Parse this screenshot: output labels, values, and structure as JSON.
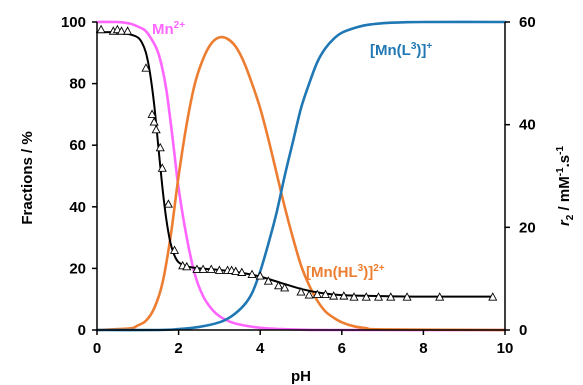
{
  "chart_data": {
    "type": "line",
    "xlabel": "pH",
    "ylabel_left": "Fractions / %",
    "ylabel_right_parts": [
      "r",
      "2",
      " / mM",
      "-1",
      ".s",
      "-1"
    ],
    "xlim": [
      0,
      10
    ],
    "ylim_left": [
      0,
      100
    ],
    "ylim_right": [
      0,
      60
    ],
    "x_ticks": [
      "0",
      "2",
      "4",
      "6",
      "8",
      "10"
    ],
    "y_left_ticks": [
      "0",
      "20",
      "40",
      "60",
      "80",
      "100"
    ],
    "y_right_ticks": [
      "0",
      "20",
      "40",
      "60"
    ],
    "grid": false,
    "series": [
      {
        "name_parts": [
          "Mn",
          "2+"
        ],
        "color": "#ff66ff",
        "axis": "left",
        "x": [
          0,
          0.5,
          0.8,
          1.0,
          1.2,
          1.4,
          1.5,
          1.6,
          1.7,
          1.8,
          1.9,
          2.0,
          2.2,
          2.4,
          2.6,
          2.8,
          3.0,
          3.3,
          3.6,
          4.0,
          4.5,
          5.0,
          6.0,
          10.0
        ],
        "y": [
          100,
          100,
          99.5,
          98.5,
          97,
          93,
          90,
          85,
          78,
          68,
          57,
          46,
          30,
          18,
          11,
          7,
          4.5,
          2.5,
          1.5,
          0.7,
          0.3,
          0.1,
          0,
          0
        ]
      },
      {
        "name_parts": [
          "[Mn(HL",
          "3",
          ")]",
          "2+"
        ],
        "color": "#ed7d31",
        "axis": "left",
        "x": [
          0,
          0.8,
          1.0,
          1.2,
          1.4,
          1.6,
          1.8,
          2.0,
          2.2,
          2.4,
          2.6,
          2.8,
          3.0,
          3.2,
          3.4,
          3.6,
          3.8,
          4.0,
          4.2,
          4.4,
          4.6,
          4.8,
          5.0,
          5.2,
          5.4,
          5.6,
          5.8,
          6.0,
          6.3,
          6.6,
          7.0,
          10.0
        ],
        "y": [
          0,
          0.5,
          1.5,
          3,
          7,
          15,
          30,
          50,
          67,
          80,
          88,
          93,
          95,
          94.5,
          92,
          87,
          80,
          72,
          62,
          51,
          40,
          30,
          21,
          14.5,
          9.5,
          6,
          4,
          2.5,
          1.2,
          0.6,
          0.2,
          0
        ]
      },
      {
        "name_parts": [
          "[Mn(L",
          "3",
          ")]",
          "+"
        ],
        "color": "#1f77b4",
        "axis": "left",
        "x": [
          0,
          1.5,
          2.0,
          2.5,
          3.0,
          3.3,
          3.6,
          3.8,
          4.0,
          4.2,
          4.4,
          4.6,
          4.8,
          5.0,
          5.2,
          5.4,
          5.6,
          5.8,
          6.0,
          6.3,
          6.6,
          7.0,
          7.5,
          8.0,
          10.0
        ],
        "y": [
          0,
          0,
          0.3,
          1,
          2.5,
          4.5,
          8,
          12,
          19,
          28,
          38,
          50,
          61,
          72,
          80,
          87,
          91.5,
          94.5,
          96.5,
          98,
          99,
          99.6,
          99.9,
          100,
          100
        ]
      },
      {
        "name_parts": [
          ""
        ],
        "color": "#000000",
        "axis": "right",
        "x": [
          0,
          0.5,
          0.8,
          1.0,
          1.1,
          1.2,
          1.3,
          1.4,
          1.5,
          1.6,
          1.7,
          1.8,
          1.9,
          2.0,
          2.2,
          2.5,
          3.0,
          3.5,
          4.0,
          4.5,
          5.0,
          5.5,
          6.0,
          7.0,
          8.0,
          9.7
        ],
        "y": [
          58,
          58,
          57.6,
          57,
          56,
          54,
          50,
          44,
          36,
          28,
          21.5,
          17,
          14.5,
          13.2,
          12.4,
          12,
          11.7,
          11.2,
          10.4,
          9.2,
          8.0,
          7.2,
          6.8,
          6.6,
          6.5,
          6.5
        ]
      }
    ],
    "markers": {
      "shape": "triangle-open",
      "color": "#000000",
      "axis": "right",
      "x": [
        0.1,
        0.4,
        0.5,
        0.6,
        0.75,
        1.2,
        1.35,
        1.4,
        1.45,
        1.55,
        1.6,
        1.75,
        1.9,
        2.1,
        2.2,
        2.45,
        2.6,
        2.8,
        3.0,
        3.2,
        3.3,
        3.4,
        3.55,
        3.8,
        4.0,
        4.2,
        4.45,
        4.6,
        5.0,
        5.2,
        5.4,
        5.6,
        5.8,
        6.05,
        6.3,
        6.6,
        6.9,
        7.2,
        7.6,
        8.4,
        9.7
      ],
      "y": [
        58.5,
        58.2,
        58.5,
        58.2,
        58.2,
        51,
        42,
        40.5,
        39,
        35.5,
        31.5,
        24.5,
        15.5,
        12.5,
        12.3,
        11.8,
        11.8,
        11.8,
        11.6,
        11.6,
        11.6,
        11.4,
        11.2,
        10.8,
        10.5,
        9.5,
        8.6,
        8.2,
        7.4,
        6.8,
        6.9,
        6.9,
        6.6,
        6.6,
        6.4,
        6.4,
        6.4,
        6.4,
        6.4,
        6.4,
        6.4
      ]
    }
  }
}
